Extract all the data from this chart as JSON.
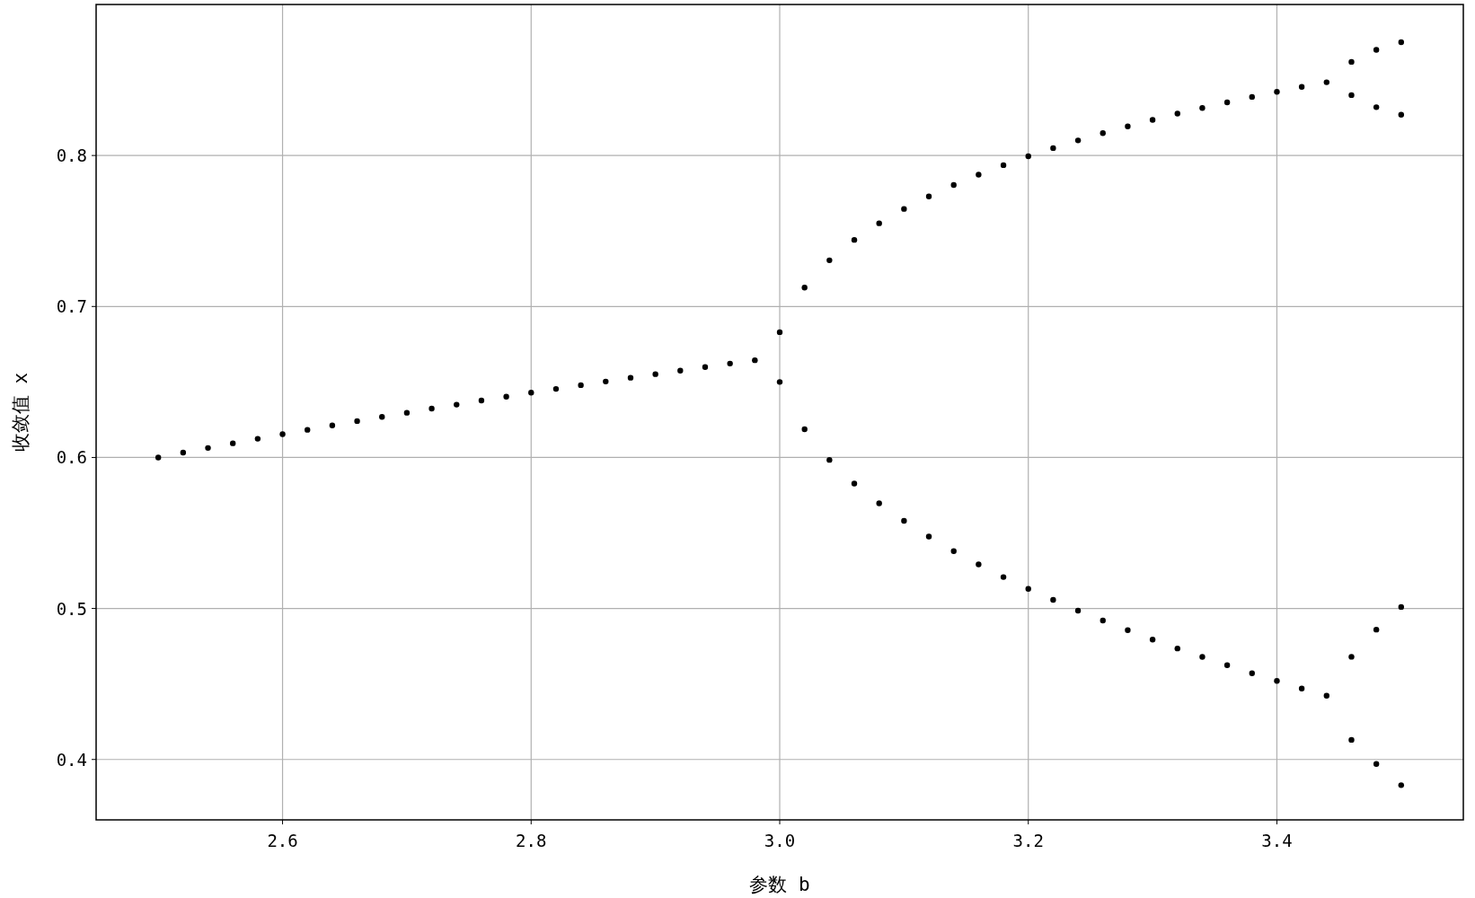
{
  "chart_data": {
    "type": "scatter",
    "xlabel": "参数 b",
    "ylabel": "收敛值 x",
    "color": "#000000",
    "marker": "circle",
    "grid": true,
    "xlim": [
      2.45,
      3.55
    ],
    "ylim": [
      0.36,
      0.9
    ],
    "xticks": [
      2.6,
      2.8,
      {
        "value": 3.0,
        "label": "3.0"
      },
      3.2,
      3.4
    ],
    "yticks": [
      0.4,
      0.5,
      0.6,
      0.7,
      0.8
    ],
    "x": [
      2.5,
      2.52,
      2.54,
      2.56,
      2.58,
      2.6,
      2.62,
      2.64,
      2.66,
      2.68,
      2.7,
      2.72,
      2.74,
      2.76,
      2.78,
      2.8,
      2.82,
      2.84,
      2.86,
      2.88,
      2.9,
      2.92,
      2.94,
      2.96,
      2.98,
      3.0,
      3.0,
      3.02,
      3.02,
      3.04,
      3.04,
      3.06,
      3.06,
      3.08,
      3.08,
      3.1,
      3.1,
      3.12,
      3.12,
      3.14,
      3.14,
      3.16,
      3.16,
      3.18,
      3.18,
      3.2,
      3.2,
      3.22,
      3.22,
      3.24,
      3.24,
      3.26,
      3.26,
      3.28,
      3.28,
      3.3,
      3.3,
      3.32,
      3.32,
      3.34,
      3.34,
      3.36,
      3.36,
      3.38,
      3.38,
      3.4,
      3.4,
      3.42,
      3.42,
      3.44,
      3.44,
      3.46,
      3.46,
      3.46,
      3.46,
      3.48,
      3.48,
      3.48,
      3.48,
      3.5,
      3.5,
      3.5,
      3.5
    ],
    "values": [
      0.6,
      0.6032,
      0.6063,
      0.6094,
      0.6124,
      0.6154,
      0.6183,
      0.6212,
      0.6241,
      0.6269,
      0.6296,
      0.6324,
      0.635,
      0.6377,
      0.6403,
      0.6429,
      0.6454,
      0.6479,
      0.6503,
      0.6528,
      0.6552,
      0.6575,
      0.6599,
      0.6622,
      0.6644,
      0.65,
      0.683,
      0.7125,
      0.6187,
      0.7306,
      0.5984,
      0.7441,
      0.5827,
      0.7551,
      0.5696,
      0.7646,
      0.558,
      0.7729,
      0.5476,
      0.7805,
      0.538,
      0.7873,
      0.5292,
      0.7936,
      0.5208,
      0.7995,
      0.513,
      0.8049,
      0.5057,
      0.81,
      0.4986,
      0.8148,
      0.492,
      0.8193,
      0.4856,
      0.8236,
      0.4794,
      0.8277,
      0.4735,
      0.8315,
      0.4679,
      0.8352,
      0.4624,
      0.8388,
      0.4571,
      0.8422,
      0.452,
      0.8454,
      0.447,
      0.8485,
      0.4422,
      0.862,
      0.84,
      0.468,
      0.413,
      0.87,
      0.832,
      0.486,
      0.397,
      0.875,
      0.827,
      0.501,
      0.383
    ]
  }
}
